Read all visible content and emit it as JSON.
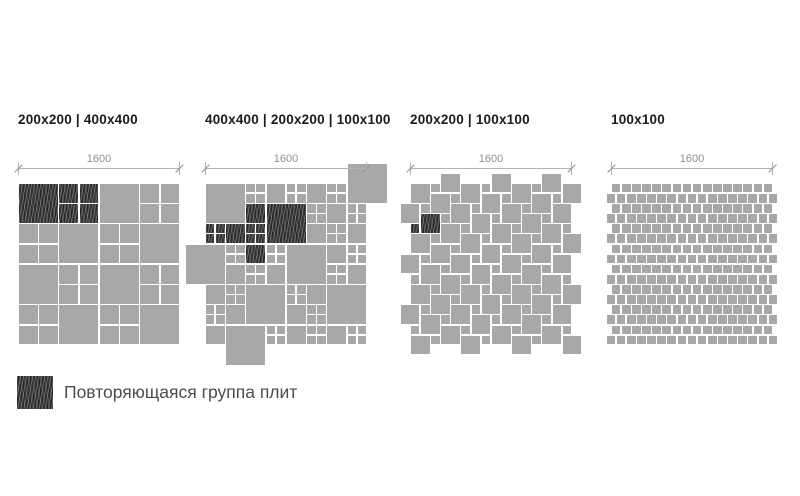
{
  "panels": [
    {
      "label": "200x200 | 400x400",
      "dim_label": "1600",
      "pattern": {
        "type": "tiles",
        "tiles": [
          [
            0,
            0,
            4,
            4,
            1,
            1
          ],
          [
            4,
            0,
            4,
            4,
            2,
            1
          ],
          [
            8,
            0,
            4,
            4,
            1,
            0
          ],
          [
            12,
            0,
            4,
            4,
            2,
            0
          ],
          [
            0,
            4,
            4,
            4,
            2,
            0
          ],
          [
            4,
            4,
            4,
            4,
            1,
            0
          ],
          [
            8,
            4,
            4,
            4,
            2,
            0
          ],
          [
            12,
            4,
            4,
            4,
            1,
            0
          ],
          [
            0,
            8,
            4,
            4,
            1,
            0
          ],
          [
            4,
            8,
            4,
            4,
            2,
            0
          ],
          [
            8,
            8,
            4,
            4,
            1,
            0
          ],
          [
            12,
            8,
            4,
            4,
            2,
            0
          ],
          [
            0,
            12,
            4,
            4,
            2,
            0
          ],
          [
            4,
            12,
            4,
            4,
            1,
            0
          ],
          [
            8,
            12,
            4,
            4,
            2,
            0
          ],
          [
            12,
            12,
            4,
            4,
            1,
            0
          ]
        ]
      }
    },
    {
      "label": "400x400 | 200x200 | 100x100",
      "dim_label": "1600",
      "pattern": {
        "type": "tiles",
        "tiles": [
          [
            0,
            0,
            4,
            4,
            1,
            0
          ],
          [
            4,
            0,
            2,
            2,
            2,
            0
          ],
          [
            6,
            0,
            2,
            2,
            1,
            0
          ],
          [
            8,
            0,
            2,
            2,
            2,
            0
          ],
          [
            10,
            0,
            2,
            2,
            1,
            0
          ],
          [
            12,
            0,
            2,
            2,
            2,
            0
          ],
          [
            14,
            -2,
            4,
            4,
            1,
            0
          ],
          [
            4,
            2,
            2,
            2,
            1,
            1
          ],
          [
            6,
            2,
            4,
            4,
            1,
            1
          ],
          [
            10,
            2,
            2,
            2,
            2,
            0
          ],
          [
            12,
            2,
            2,
            2,
            1,
            0
          ],
          [
            14,
            2,
            2,
            2,
            2,
            0
          ],
          [
            0,
            4,
            2,
            2,
            2,
            1
          ],
          [
            2,
            4,
            2,
            2,
            1,
            1
          ],
          [
            4,
            4,
            2,
            2,
            2,
            1
          ],
          [
            10,
            4,
            2,
            2,
            1,
            0
          ],
          [
            12,
            4,
            2,
            2,
            2,
            0
          ],
          [
            14,
            4,
            2,
            2,
            1,
            0
          ],
          [
            -2,
            6,
            4,
            4,
            1,
            0
          ],
          [
            2,
            6,
            2,
            2,
            2,
            0
          ],
          [
            4,
            6,
            2,
            2,
            1,
            1
          ],
          [
            6,
            6,
            2,
            2,
            2,
            0
          ],
          [
            8,
            6,
            4,
            4,
            1,
            0
          ],
          [
            12,
            6,
            2,
            2,
            1,
            0
          ],
          [
            14,
            6,
            2,
            2,
            2,
            0
          ],
          [
            2,
            8,
            2,
            2,
            1,
            0
          ],
          [
            4,
            8,
            2,
            2,
            2,
            0
          ],
          [
            6,
            8,
            2,
            2,
            1,
            0
          ],
          [
            12,
            8,
            2,
            2,
            2,
            0
          ],
          [
            14,
            8,
            2,
            2,
            1,
            0
          ],
          [
            0,
            10,
            2,
            2,
            1,
            0
          ],
          [
            2,
            10,
            2,
            2,
            2,
            0
          ],
          [
            4,
            10,
            4,
            4,
            1,
            0
          ],
          [
            8,
            10,
            2,
            2,
            2,
            0
          ],
          [
            10,
            10,
            2,
            2,
            1,
            0
          ],
          [
            12,
            10,
            4,
            4,
            1,
            0
          ],
          [
            0,
            12,
            2,
            2,
            2,
            0
          ],
          [
            2,
            12,
            2,
            2,
            1,
            0
          ],
          [
            8,
            12,
            2,
            2,
            1,
            0
          ],
          [
            10,
            12,
            2,
            2,
            2,
            0
          ],
          [
            0,
            14,
            2,
            2,
            1,
            0
          ],
          [
            2,
            14,
            4,
            4,
            1,
            0
          ],
          [
            6,
            14,
            2,
            2,
            2,
            0
          ],
          [
            8,
            14,
            2,
            2,
            1,
            0
          ],
          [
            10,
            14,
            2,
            2,
            2,
            0
          ],
          [
            12,
            14,
            2,
            2,
            1,
            0
          ],
          [
            14,
            14,
            2,
            2,
            2,
            0
          ]
        ]
      }
    },
    {
      "label": "200x200 | 100x100",
      "dim_label": "1600",
      "pattern": {
        "type": "pinwheel",
        "large_cells": 2,
        "small_cells": 1,
        "area_cells": 16,
        "dark_unit": {
          "i": 1,
          "j": 1
        }
      }
    },
    {
      "label": "100x100",
      "dim_label": "1600",
      "pattern": {
        "type": "brick",
        "rows": 16,
        "cols": 16
      }
    }
  ],
  "legend": {
    "text": "Повторяющаяся группа плит"
  },
  "colors": {
    "background": "#ffffff",
    "tile": "#a8a8a8",
    "dark_tile": "#2b2b2b",
    "dimension_line": "#b3b3b3",
    "dimension_text": "#8f8f8f",
    "panel_label": "#1b1b1b",
    "legend_text": "#4c4c4c"
  }
}
